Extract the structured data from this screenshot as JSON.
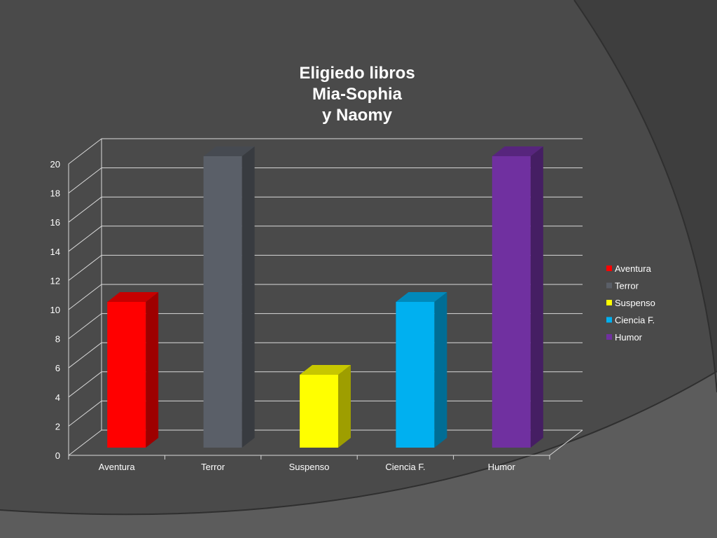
{
  "slide": {
    "background_color": "#3e3e3e",
    "panel_color": "#4a4a4a",
    "arc_color": "#5c5c5c"
  },
  "chart_data": {
    "type": "bar",
    "title_lines": [
      "Eligiedo libros",
      "Mia-Sophia",
      "y Naomy"
    ],
    "categories": [
      "Aventura",
      "Terror",
      "Suspenso",
      "Ciencia F.",
      "Humor"
    ],
    "values": [
      10,
      20,
      5,
      10,
      20
    ],
    "colors": [
      "#ff0000",
      "#5a5f68",
      "#ffff00",
      "#00b0f0",
      "#7030a0"
    ],
    "ylim": [
      0,
      20
    ],
    "yticks": [
      0,
      2,
      4,
      6,
      8,
      10,
      12,
      14,
      16,
      18,
      20
    ],
    "grid": true,
    "legend": {
      "position": "right",
      "entries": [
        "Aventura",
        "Terror",
        "Suspenso",
        "Ciencia F.",
        "Humor"
      ]
    }
  }
}
